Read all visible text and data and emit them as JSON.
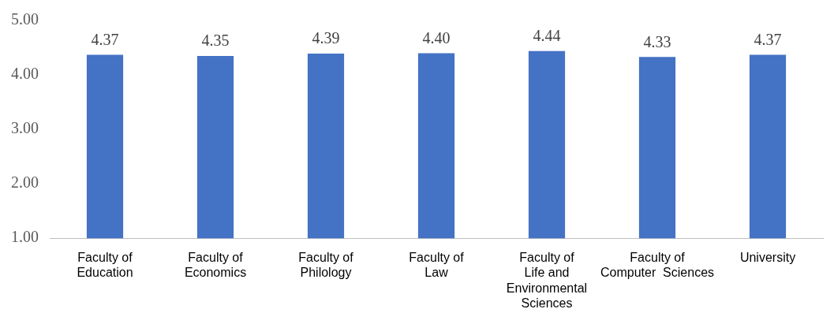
{
  "chart_data": {
    "type": "bar",
    "categories": [
      "Faculty of\nEducation",
      "Faculty of\nEconomics",
      "Faculty of\nPhilology",
      "Faculty of\nLaw",
      "Faculty of\nLife and\nEnvironmental\nSciences",
      "Faculty of\nComputer  Sciences",
      "University"
    ],
    "values": [
      4.37,
      4.35,
      4.39,
      4.4,
      4.44,
      4.33,
      4.37
    ],
    "color": "#4472c4",
    "ylim": [
      1,
      5
    ],
    "yticks": [
      {
        "value": 1,
        "label": "1.00"
      },
      {
        "value": 2,
        "label": "2.00"
      },
      {
        "value": 3,
        "label": "3.00"
      },
      {
        "value": 4,
        "label": "4.00"
      },
      {
        "value": 5,
        "label": "5.00"
      }
    ],
    "value_labels": [
      "4.37",
      "4.35",
      "4.39",
      "4.40",
      "4.44",
      "4.33",
      "4.37"
    ],
    "grid": false,
    "legend": false
  }
}
